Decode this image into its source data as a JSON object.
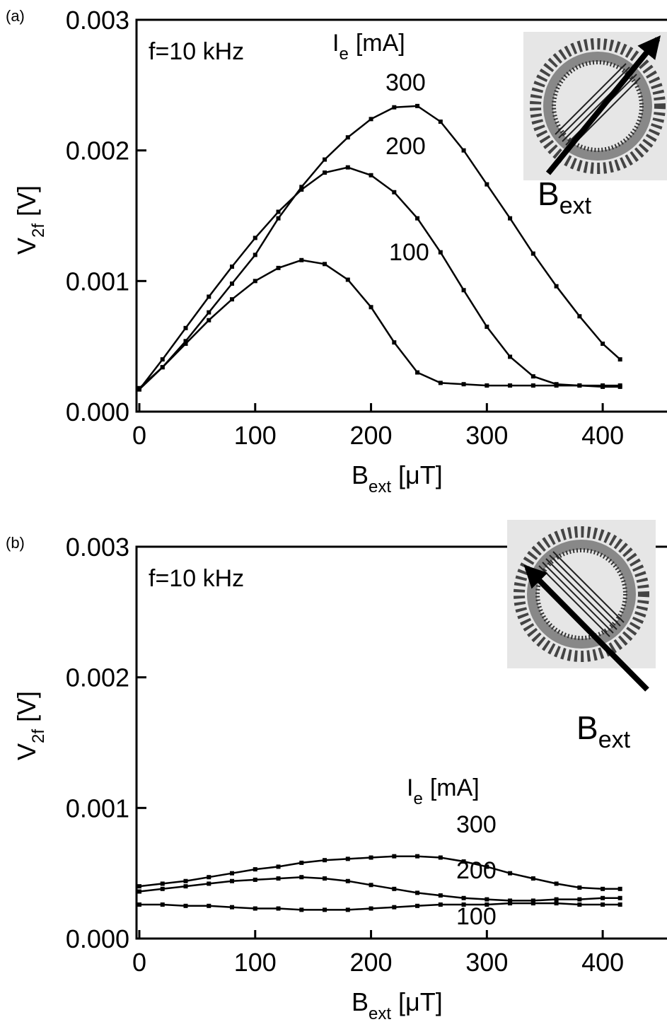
{
  "chart_data": [
    {
      "type": "line",
      "panel": "(a)",
      "annotation": "f=10 kHz",
      "legend_title": [
        "I",
        "e",
        "[mA]"
      ],
      "inset_label": [
        "B",
        "ext"
      ],
      "xlabel": [
        "B",
        "ext",
        "[μT]"
      ],
      "ylabel": [
        "V",
        "2f",
        "[V]"
      ],
      "xlim": [
        0,
        450
      ],
      "ylim": [
        0,
        0.003
      ],
      "xticks": [
        0,
        100,
        200,
        300,
        400
      ],
      "yticks": [
        {
          "value": 0,
          "label": "0.000"
        },
        0.001,
        0.002,
        0.003
      ],
      "x": [
        0,
        20,
        40,
        60,
        80,
        100,
        120,
        140,
        160,
        180,
        200,
        220,
        240,
        260,
        280,
        300,
        320,
        340,
        360,
        380,
        400,
        415
      ],
      "series": [
        {
          "name": "300",
          "color": "#000000",
          "values": [
            0.00017,
            0.00034,
            0.00054,
            0.00076,
            0.00098,
            0.0012,
            0.00148,
            0.00172,
            0.00193,
            0.0021,
            0.00224,
            0.00233,
            0.00234,
            0.00222,
            0.002,
            0.00174,
            0.00148,
            0.00121,
            0.00096,
            0.00073,
            0.00052,
            0.0004
          ]
        },
        {
          "name": "200",
          "color": "#000000",
          "values": [
            0.00017,
            0.0004,
            0.00064,
            0.00088,
            0.00111,
            0.00133,
            0.00153,
            0.0017,
            0.00183,
            0.00187,
            0.00181,
            0.00168,
            0.00148,
            0.00122,
            0.00093,
            0.00065,
            0.00042,
            0.00027,
            0.00021,
            0.0002,
            0.00019,
            0.00019
          ]
        },
        {
          "name": "100",
          "color": "#000000",
          "values": [
            0.00018,
            0.00034,
            0.00052,
            0.0007,
            0.00086,
            0.001,
            0.0011,
            0.00116,
            0.00113,
            0.00101,
            0.0008,
            0.00053,
            0.0003,
            0.00022,
            0.00021,
            0.0002,
            0.0002,
            0.0002,
            0.0002,
            0.0002,
            0.0002,
            0.0002
          ]
        }
      ]
    },
    {
      "type": "line",
      "panel": "(b)",
      "annotation": "f=10 kHz",
      "legend_title": [
        "I",
        "e",
        "[mA]"
      ],
      "inset_label": [
        "B",
        "ext"
      ],
      "xlabel": [
        "B",
        "ext",
        "[μT]"
      ],
      "ylabel": [
        "V",
        "2f",
        "[V]"
      ],
      "xlim": [
        0,
        450
      ],
      "ylim": [
        0,
        0.003
      ],
      "xticks": [
        0,
        100,
        200,
        300,
        400
      ],
      "yticks": [
        {
          "value": 0,
          "label": "0.000"
        },
        0.001,
        0.002,
        0.003
      ],
      "x": [
        0,
        20,
        40,
        60,
        80,
        100,
        120,
        140,
        160,
        180,
        200,
        220,
        240,
        260,
        280,
        300,
        320,
        340,
        360,
        380,
        400,
        415
      ],
      "series": [
        {
          "name": "300",
          "color": "#000000",
          "values": [
            0.0004,
            0.00042,
            0.00044,
            0.00047,
            0.0005,
            0.00053,
            0.00055,
            0.00058,
            0.0006,
            0.00061,
            0.00062,
            0.00063,
            0.00063,
            0.00062,
            0.00059,
            0.00055,
            0.0005,
            0.00046,
            0.00042,
            0.00039,
            0.00038,
            0.00038
          ]
        },
        {
          "name": "200",
          "color": "#000000",
          "values": [
            0.00036,
            0.00038,
            0.0004,
            0.00042,
            0.00044,
            0.00045,
            0.00046,
            0.00047,
            0.00046,
            0.00044,
            0.00041,
            0.00038,
            0.00035,
            0.00033,
            0.00031,
            0.0003,
            0.00029,
            0.00029,
            0.0003,
            0.0003,
            0.00031,
            0.00031
          ]
        },
        {
          "name": "100",
          "color": "#000000",
          "values": [
            0.00026,
            0.00026,
            0.00025,
            0.00025,
            0.00024,
            0.00023,
            0.00023,
            0.00022,
            0.00022,
            0.00022,
            0.00023,
            0.00024,
            0.00025,
            0.00026,
            0.00026,
            0.00026,
            0.00027,
            0.00027,
            0.00027,
            0.00026,
            0.00026,
            0.00026
          ]
        }
      ]
    }
  ]
}
